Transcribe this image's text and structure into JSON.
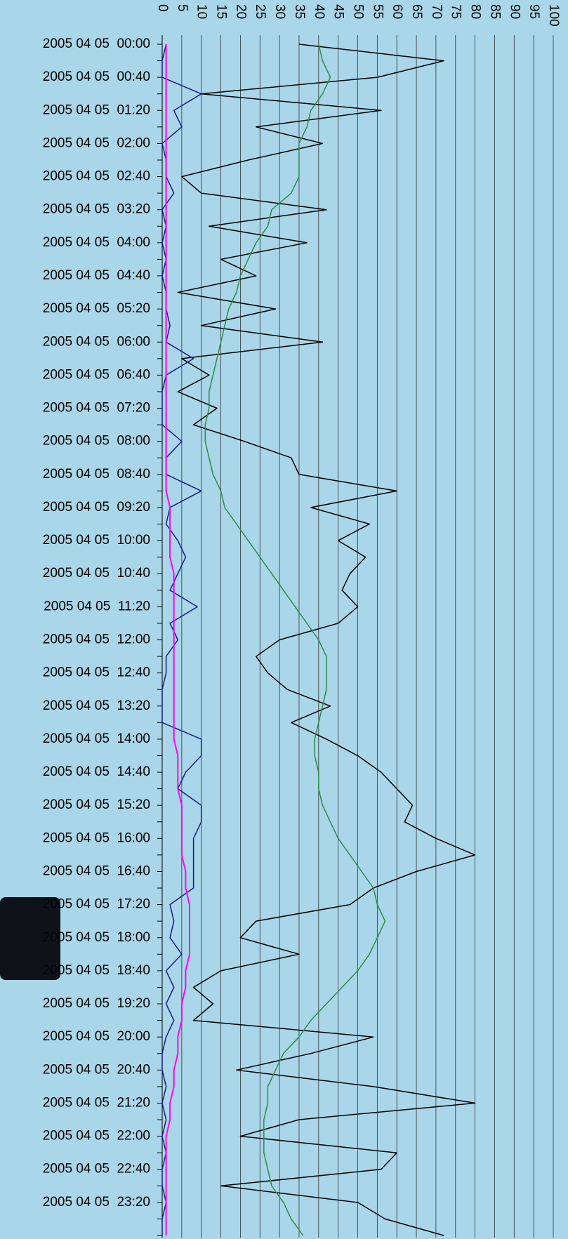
{
  "chart_data": {
    "type": "line",
    "orientation": "horizontal",
    "categories": [
      "2005 04 05  00:00",
      null,
      "2005 04 05  00:40",
      null,
      "2005 04 05  01:20",
      null,
      "2005 04 05  02:00",
      null,
      "2005 04 05  02:40",
      null,
      "2005 04 05  03:20",
      null,
      "2005 04 05  04:00",
      null,
      "2005 04 05  04:40",
      null,
      "2005 04 05  05:20",
      null,
      "2005 04 05  06:00",
      null,
      "2005 04 05  06:40",
      null,
      "2005 04 05  07:20",
      null,
      "2005 04 05  08:00",
      null,
      "2005 04 05  08:40",
      null,
      "2005 04 05  09:20",
      null,
      "2005 04 05  10:00",
      null,
      "2005 04 05  10:40",
      null,
      "2005 04 05  11:20",
      null,
      "2005 04 05  12:00",
      null,
      "2005 04 05  12:40",
      null,
      "2005 04 05  13:20",
      null,
      "2005 04 05  14:00",
      null,
      "2005 04 05  14:40",
      null,
      "2005 04 05  15:20",
      null,
      "2005 04 05  16:00",
      null,
      "2005 04 05  16:40",
      null,
      "2005 04 05  17:20",
      null,
      "2005 04 05  18:00",
      null,
      "2005 04 05  18:40",
      null,
      "2005 04 05  19:20",
      null,
      "2005 04 05  20:00",
      null,
      "2005 04 05  20:40",
      null,
      "2005 04 05  21:20",
      null,
      "2005 04 05  22:00",
      null,
      "2005 04 05  22:40",
      null,
      "2005 04 05  23:20",
      null,
      null
    ],
    "series": [
      {
        "color": "#000000",
        "values": [
          35,
          72,
          55,
          10,
          56,
          24,
          41,
          22,
          5,
          10,
          42,
          12,
          37,
          15,
          24,
          4,
          29,
          10,
          41,
          5,
          12,
          4,
          14,
          8,
          21,
          33,
          35,
          60,
          38,
          53,
          45,
          52,
          48,
          46,
          50,
          45,
          30,
          24,
          27,
          32,
          43,
          33,
          42,
          50,
          56,
          60,
          64,
          62,
          70,
          80,
          65,
          54,
          48,
          24,
          20,
          35,
          15,
          8,
          13,
          8,
          54,
          38,
          19,
          54,
          80,
          35,
          20,
          60,
          56,
          15,
          50,
          57,
          72
        ]
      },
      {
        "color": "#2e8b4a",
        "values": [
          40,
          41,
          43,
          41,
          38,
          37,
          35,
          35,
          35,
          33,
          28,
          27,
          24,
          22,
          20,
          19,
          17,
          16,
          15,
          14,
          13,
          12,
          12,
          11,
          11,
          12,
          13,
          15,
          16,
          19,
          22,
          25,
          28,
          31,
          34,
          37,
          40,
          42,
          42,
          42,
          41,
          40,
          39,
          39,
          40,
          40,
          41,
          43,
          45,
          48,
          51,
          54,
          55,
          57,
          55,
          53,
          50,
          46,
          42,
          38,
          35,
          31,
          29,
          27,
          27,
          26,
          26,
          26,
          27,
          28,
          31,
          33,
          36
        ]
      },
      {
        "color": "#1a1a8c",
        "values": [
          1,
          0,
          0,
          10,
          3,
          5,
          0,
          1,
          1,
          3,
          0,
          1,
          0,
          1,
          0,
          1,
          1,
          2,
          1,
          8,
          1,
          0,
          0,
          0,
          5,
          1,
          1,
          10,
          2,
          1,
          4,
          6,
          4,
          2,
          9,
          2,
          4,
          1,
          1,
          0,
          0,
          0,
          10,
          10,
          6,
          4,
          10,
          10,
          8,
          8,
          8,
          8,
          2,
          3,
          2,
          5,
          1,
          3,
          1,
          3,
          1,
          0,
          0,
          1,
          0,
          1,
          0,
          1,
          0,
          0,
          1,
          0,
          0
        ]
      },
      {
        "color": "#ff00ff",
        "values": [
          1,
          1,
          1,
          1,
          1,
          1,
          1,
          1,
          1,
          1,
          1,
          1,
          1,
          1,
          1,
          1,
          1,
          1,
          1,
          1,
          1,
          1,
          1,
          1,
          1,
          1,
          1,
          1,
          2,
          2,
          2,
          2,
          3,
          3,
          3,
          3,
          3,
          3,
          3,
          3,
          3,
          3,
          3,
          4,
          4,
          4,
          5,
          5,
          5,
          5,
          6,
          6,
          7,
          7,
          7,
          7,
          6,
          6,
          5,
          5,
          4,
          4,
          3,
          3,
          2,
          2,
          1,
          1,
          1,
          1,
          1,
          1,
          1
        ]
      }
    ],
    "ylim": [
      0,
      100
    ],
    "yticks": [
      0,
      5,
      10,
      15,
      20,
      25,
      30,
      35,
      40,
      45,
      50,
      55,
      60,
      65,
      70,
      75,
      80,
      85,
      90,
      95,
      100
    ],
    "grid": true
  }
}
